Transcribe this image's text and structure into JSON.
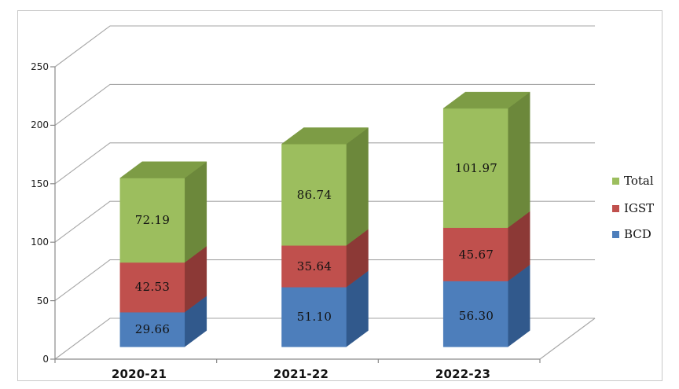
{
  "chart_data": {
    "type": "bar",
    "variant": "3d-stacked-column",
    "title": "",
    "categories": [
      "2020-21",
      "2021-22",
      "2022-23"
    ],
    "series": [
      {
        "name": "BCD",
        "values": [
          29.66,
          51.1,
          56.3
        ],
        "data_labels": [
          "29.66",
          "51.10",
          "56.30"
        ],
        "color": "#4D7EBB",
        "side_color": "#31598C",
        "top_color": "#3D6CA5"
      },
      {
        "name": "IGST",
        "values": [
          42.53,
          35.64,
          45.67
        ],
        "data_labels": [
          "42.53",
          "35.64",
          "45.67"
        ],
        "color": "#C0504D",
        "side_color": "#8C3936",
        "top_color": "#A84441"
      },
      {
        "name": "Total",
        "values": [
          72.19,
          86.74,
          101.97
        ],
        "data_labels": [
          "72.19",
          "86.74",
          "101.97"
        ],
        "color": "#9CBE5E",
        "side_color": "#6C883B",
        "top_color": "#7D9C45"
      }
    ],
    "stack_order_bottom_to_top": [
      "BCD",
      "IGST",
      "Total"
    ],
    "y_axis": {
      "min": 0,
      "max": 250,
      "step": 50,
      "tick_labels": [
        "0",
        "50",
        "100",
        "150",
        "200",
        "250"
      ]
    },
    "legend": {
      "position": "right",
      "items": [
        {
          "label": "Total",
          "color": "#9CBE5E"
        },
        {
          "label": "IGST",
          "color": "#C0504D"
        },
        {
          "label": "BCD",
          "color": "#4D7EBB"
        }
      ]
    },
    "gridlines": true
  },
  "colors": {
    "background": "#FFFFFF",
    "border": "#C9C9C9",
    "gridline": "#A6A6A6",
    "axis": "#8A8A8A",
    "label_text": "#121212"
  }
}
